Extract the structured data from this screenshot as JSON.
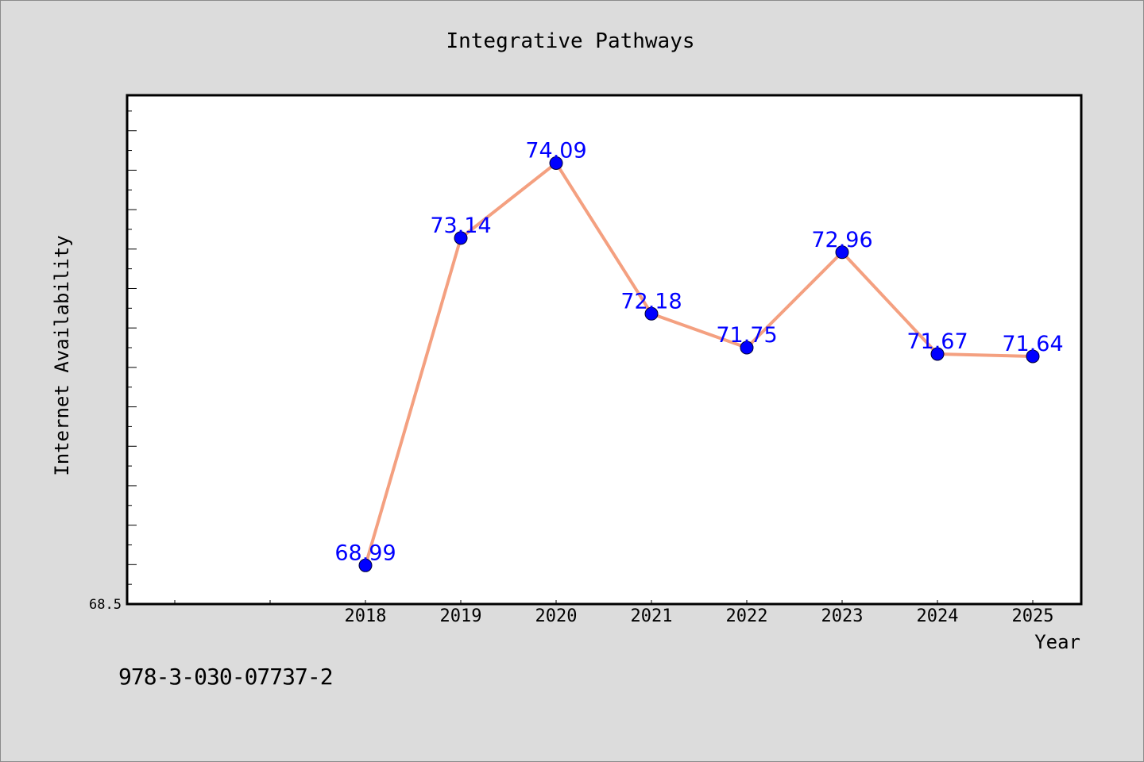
{
  "chart_data": {
    "type": "line",
    "title": "Integrative Pathways",
    "xlabel": "Year",
    "ylabel": "Internet Availability",
    "x": [
      "2018",
      "2019",
      "2020",
      "2021",
      "2022",
      "2023",
      "2024",
      "2025"
    ],
    "values": [
      68.99,
      73.14,
      74.09,
      72.18,
      71.75,
      72.96,
      71.67,
      71.64
    ],
    "data_labels": [
      "68.99",
      "73.14",
      "74.09",
      "72.18",
      "71.75",
      "72.96",
      "71.67",
      "71.64"
    ],
    "y_tick_labels": [
      "68.5"
    ],
    "ylim": [
      68.5,
      74.95
    ],
    "grid": false,
    "colors": {
      "line": "#f4a080",
      "marker": "#0000ff",
      "data_label": "#0000ff",
      "plot_background": "#ffffff",
      "page_background": "#dcdcdc"
    }
  },
  "footer": {
    "isbn": "978-3-030-07737-2"
  }
}
